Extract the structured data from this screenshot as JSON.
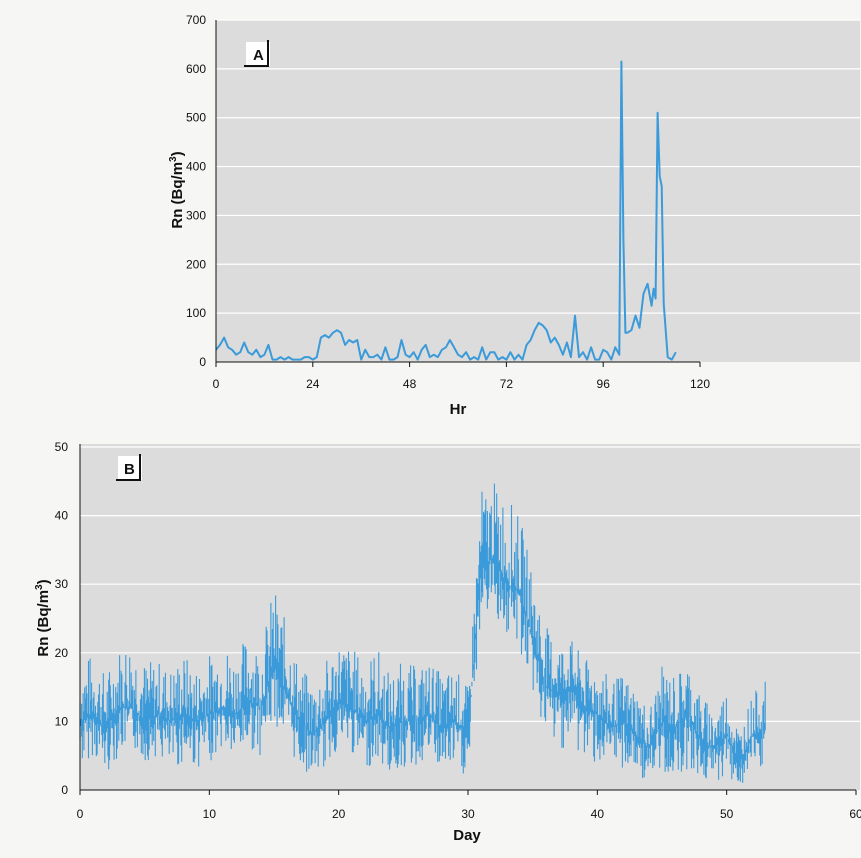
{
  "chart_data": [
    {
      "panel": "A",
      "type": "line",
      "xlabel": "Hr",
      "ylabel": "Rn (Bq/m3)",
      "ylabel_main": "Rn (Bq/m",
      "ylabel_sup": "3",
      "ylabel_end": ")",
      "xlim": [
        0,
        120
      ],
      "ylim": [
        0,
        700
      ],
      "xticks": [
        "0",
        "24",
        "48",
        "72",
        "96",
        "120"
      ],
      "yticks": [
        "0",
        "100",
        "200",
        "300",
        "400",
        "500",
        "600",
        "700"
      ],
      "grid": "horizontal",
      "color": "#3b9ad9",
      "series": [
        {
          "x": [
            0,
            1,
            2,
            3,
            4,
            5,
            6,
            7,
            8,
            9,
            10,
            11,
            12,
            13,
            14,
            15,
            16,
            17,
            18,
            19,
            20,
            21,
            22,
            23,
            24,
            25,
            26,
            27,
            28,
            29,
            30,
            31,
            32,
            33,
            34,
            35,
            36,
            37,
            38,
            39,
            40,
            41,
            42,
            43,
            44,
            45,
            46,
            47,
            48,
            49,
            50,
            51,
            52,
            53,
            54,
            55,
            56,
            57,
            58,
            59,
            60,
            61,
            62,
            63,
            64,
            65,
            66,
            67,
            68,
            69,
            70,
            71,
            72,
            73,
            74,
            75,
            76,
            77,
            78,
            79,
            80,
            81,
            82,
            83,
            84,
            85,
            86,
            87,
            88,
            89,
            90,
            91,
            92,
            93,
            94,
            95,
            96,
            97,
            98,
            99,
            100,
            100.5,
            101,
            101.5,
            102,
            103,
            104,
            105,
            106,
            107,
            108,
            108.5,
            109,
            109.5,
            110,
            110.5,
            111,
            112,
            113,
            114
          ],
          "y": [
            25,
            35,
            50,
            30,
            25,
            15,
            20,
            40,
            20,
            15,
            25,
            10,
            15,
            35,
            5,
            5,
            10,
            5,
            10,
            5,
            5,
            5,
            10,
            10,
            5,
            10,
            50,
            55,
            50,
            60,
            65,
            60,
            35,
            45,
            40,
            45,
            5,
            25,
            10,
            10,
            15,
            5,
            30,
            5,
            5,
            10,
            45,
            15,
            10,
            20,
            5,
            25,
            35,
            10,
            15,
            10,
            25,
            30,
            45,
            30,
            15,
            10,
            20,
            5,
            10,
            5,
            30,
            5,
            20,
            20,
            5,
            10,
            5,
            20,
            5,
            15,
            5,
            35,
            45,
            65,
            80,
            75,
            65,
            40,
            50,
            35,
            15,
            40,
            10,
            95,
            10,
            20,
            5,
            30,
            5,
            5,
            25,
            20,
            5,
            30,
            15,
            615,
            250,
            60,
            60,
            65,
            95,
            70,
            140,
            160,
            115,
            150,
            130,
            510,
            380,
            360,
            120,
            10,
            5,
            20
          ]
        }
      ]
    },
    {
      "panel": "B",
      "type": "line",
      "xlabel": "Day",
      "ylabel": "Rn (Bq/m3)",
      "ylabel_main": "Rn (Bq/m",
      "ylabel_sup": "3",
      "ylabel_end": ")",
      "xlim": [
        0,
        60
      ],
      "ylim": [
        0,
        50
      ],
      "xticks": [
        "0",
        "10",
        "20",
        "30",
        "40",
        "50",
        "60"
      ],
      "yticks": [
        "0",
        "10",
        "20",
        "30",
        "40",
        "50"
      ],
      "grid": "horizontal",
      "color": "#3b9ad9",
      "series": [
        {
          "x": [
            0,
            1,
            2,
            3,
            4,
            5,
            6,
            7,
            8,
            9,
            10,
            11,
            12,
            13,
            14,
            15,
            16,
            17,
            18,
            19,
            20,
            21,
            22,
            23,
            24,
            25,
            26,
            27,
            28,
            29,
            30,
            31,
            32,
            33,
            34,
            35,
            36,
            37,
            38,
            39,
            40,
            41,
            42,
            43,
            44,
            45,
            46,
            47,
            48,
            49,
            50,
            51,
            52,
            53
          ],
          "center": [
            10,
            11,
            9,
            12,
            12,
            10,
            11,
            10,
            11,
            10,
            11,
            12,
            11,
            13,
            12,
            18,
            14,
            10,
            8,
            10,
            13,
            12,
            10,
            11,
            9,
            10,
            10,
            11,
            9,
            10,
            8,
            32,
            34,
            30,
            29,
            22,
            15,
            14,
            15,
            12,
            11,
            9,
            10,
            8,
            6,
            10,
            9,
            11,
            7,
            6,
            8,
            4,
            8,
            9
          ],
          "low": [
            3,
            5,
            2,
            5,
            6,
            4,
            5,
            2,
            4,
            3,
            4,
            6,
            4,
            6,
            5,
            10,
            6,
            3,
            2,
            3,
            6,
            5,
            3,
            4,
            2,
            3,
            3,
            5,
            2,
            3,
            1,
            25,
            26,
            22,
            20,
            14,
            8,
            6,
            6,
            4,
            4,
            2,
            3,
            2,
            1,
            2,
            2,
            3,
            1,
            1,
            2,
            0,
            2,
            3
          ],
          "high": [
            19,
            20,
            17,
            21,
            23,
            19,
            19,
            18,
            20,
            18,
            20,
            22,
            20,
            23,
            21,
            30,
            24,
            18,
            16,
            19,
            22,
            21,
            19,
            21,
            17,
            19,
            18,
            19,
            17,
            18,
            15,
            44,
            45,
            43,
            40,
            32,
            24,
            22,
            22,
            19,
            19,
            16,
            17,
            15,
            12,
            18,
            17,
            19,
            14,
            12,
            15,
            9,
            14,
            16
          ]
        }
      ]
    }
  ]
}
